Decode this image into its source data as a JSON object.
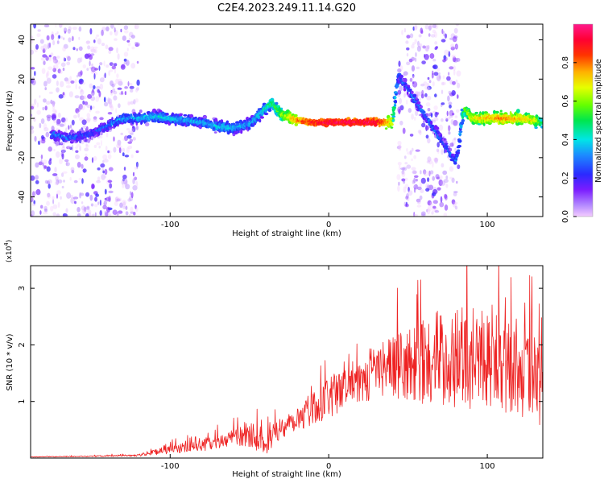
{
  "title": "C2E4.2023.249.11.14.G20",
  "colors": {
    "snr_line": "#ee2222",
    "axis": "#000000"
  },
  "chart_data": [
    {
      "type": "heatmap",
      "xlabel": "Height of straight line (km)",
      "ylabel": "Frequency (Hz)",
      "xlim": [
        -188,
        135
      ],
      "ylim": [
        -50,
        48
      ],
      "x_ticks": [
        -100,
        0,
        100
      ],
      "y_ticks": [
        -40,
        -20,
        0,
        20,
        40
      ],
      "grid": false,
      "colorbar": {
        "label": "Normalized spectral amplitude",
        "range": [
          0.0,
          1.0
        ],
        "ticks": [
          0.0,
          0.2,
          0.4,
          0.6,
          0.8
        ],
        "colormap": "rainbow (violet-blue-cyan-green-yellow-red-magenta)"
      },
      "ridge": {
        "x": [
          -175,
          -165,
          -150,
          -140,
          -130,
          -120,
          -110,
          -100,
          -90,
          -80,
          -70,
          -60,
          -50,
          -40,
          -36,
          -30,
          -20,
          -10,
          0,
          10,
          20,
          30,
          40,
          42,
          44,
          80,
          82,
          84,
          86,
          90,
          100,
          110,
          120,
          130,
          135
        ],
        "y": [
          -8,
          -10,
          -8,
          -4,
          0,
          0,
          1,
          0,
          -1,
          -2,
          -4,
          -5,
          -3,
          5,
          8,
          2,
          -1,
          -2,
          -2,
          -2,
          -2,
          -2,
          -2,
          10,
          22,
          -22,
          -15,
          0,
          5,
          0,
          0,
          0,
          0,
          -1,
          -2
        ],
        "peak_amplitude": [
          0.3,
          0.3,
          0.25,
          0.3,
          0.35,
          0.35,
          0.4,
          0.4,
          0.35,
          0.35,
          0.4,
          0.4,
          0.35,
          0.45,
          0.5,
          0.6,
          0.8,
          0.9,
          0.95,
          0.95,
          0.95,
          0.95,
          0.7,
          0.4,
          0.3,
          0.3,
          0.3,
          0.5,
          0.6,
          0.7,
          0.75,
          0.8,
          0.75,
          0.7,
          0.5
        ]
      },
      "noise_bands_x": [
        [
          -188,
          -120
        ],
        [
          44,
          82
        ]
      ]
    },
    {
      "type": "line",
      "xlabel": "Height of straight line (km)",
      "ylabel": "SNR (10 * v/v)",
      "y_multiplier": "(x10^4)",
      "xlim": [
        -188,
        135
      ],
      "ylim": [
        0,
        3.4
      ],
      "x_ticks": [
        -100,
        0,
        100
      ],
      "y_ticks": [
        1,
        2,
        3
      ],
      "grid": false,
      "series": [
        {
          "x": [
            -188,
            -150,
            -120,
            -100,
            -80,
            -60,
            -50,
            -40,
            -30,
            -20,
            -10,
            0,
            10,
            20,
            30,
            40,
            50,
            60,
            70,
            80,
            90,
            100,
            110,
            120,
            130,
            135
          ],
          "y": [
            0.02,
            0.03,
            0.05,
            0.15,
            0.22,
            0.35,
            0.45,
            0.25,
            0.55,
            0.7,
            0.9,
            1.05,
            1.25,
            1.4,
            1.55,
            1.6,
            1.65,
            1.7,
            1.75,
            1.8,
            1.75,
            1.7,
            1.65,
            1.6,
            1.4,
            1.0
          ],
          "spread": [
            0.005,
            0.01,
            0.02,
            0.08,
            0.1,
            0.15,
            0.25,
            0.2,
            0.2,
            0.25,
            0.3,
            0.35,
            0.4,
            0.45,
            0.5,
            0.55,
            0.65,
            0.75,
            0.85,
            0.9,
            0.9,
            0.85,
            0.85,
            0.85,
            0.8,
            0.6
          ]
        }
      ]
    }
  ]
}
